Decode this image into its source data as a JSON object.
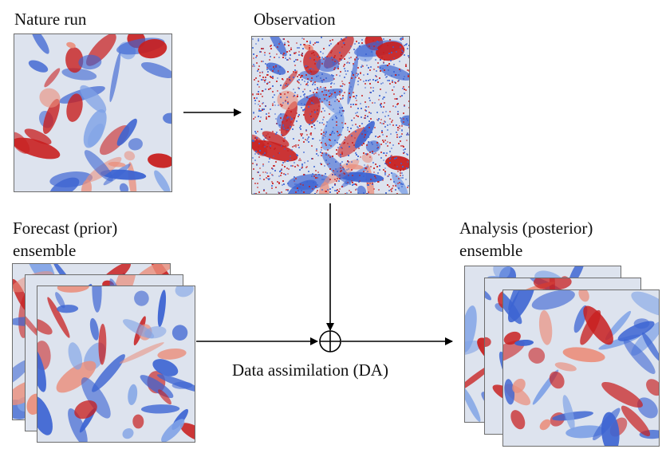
{
  "diagram": {
    "nature_run": {
      "label": "Nature run"
    },
    "observation": {
      "label": "Observation"
    },
    "forecast": {
      "label_line1": "Forecast (prior)",
      "label_line2": "ensemble"
    },
    "analysis": {
      "label_line1": "Analysis (posterior)",
      "label_line2": "ensemble"
    },
    "da": {
      "label": "Data assimilation (DA)",
      "operator_symbol": "⊕"
    }
  },
  "colors": {
    "warm": "#c81e1e",
    "cool": "#3c64d2",
    "neutral": "#dde3ee",
    "arrow": "#000000"
  }
}
